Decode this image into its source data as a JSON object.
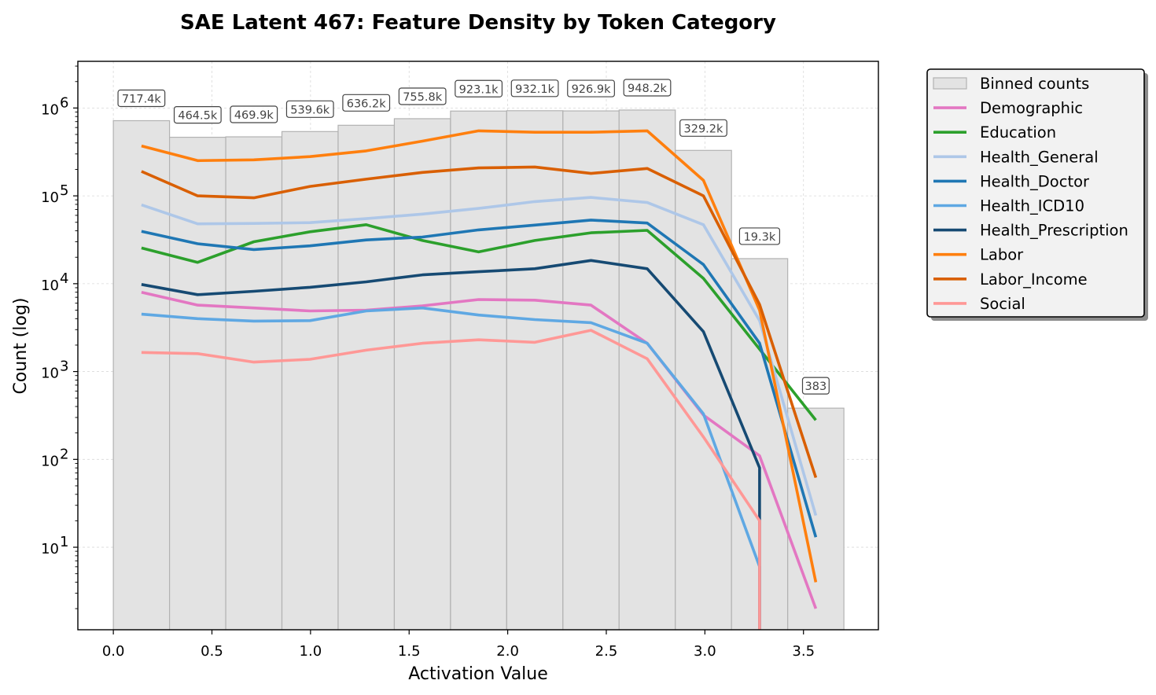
{
  "chart_data": {
    "type": "line",
    "title": "SAE Latent 467: Feature Density by Token Category",
    "xlabel": "Activation Value",
    "ylabel": "Count (log)",
    "xscale": "linear",
    "yscale": "log",
    "xlim": [
      -0.18,
      3.88
    ],
    "ylim": [
      1.15,
      3400000
    ],
    "xticks": [
      0.0,
      0.5,
      1.0,
      1.5,
      2.0,
      2.5,
      3.0,
      3.5
    ],
    "xtick_labels": [
      "0.0",
      "0.5",
      "1.0",
      "1.5",
      "2.0",
      "2.5",
      "3.0",
      "3.5"
    ],
    "yticks": [
      {
        "base": "10",
        "exp": "1",
        "value": 10
      },
      {
        "base": "10",
        "exp": "2",
        "value": 100
      },
      {
        "base": "10",
        "exp": "3",
        "value": 1000
      },
      {
        "base": "10",
        "exp": "4",
        "value": 10000
      },
      {
        "base": "10",
        "exp": "5",
        "value": 100000
      },
      {
        "base": "10",
        "exp": "6",
        "value": 1000000
      }
    ],
    "grid": true,
    "legend_position": "outside-top-right",
    "bins": {
      "name": "Binned counts",
      "color": "#e3e3e3",
      "edges": [
        0.0,
        0.285,
        0.57,
        0.855,
        1.14,
        1.425,
        1.71,
        1.995,
        2.28,
        2.565,
        2.85,
        3.135,
        3.42,
        3.705
      ],
      "counts": [
        717400,
        464500,
        469900,
        539600,
        636200,
        755800,
        923100,
        932100,
        926900,
        948200,
        329200,
        19300,
        383
      ],
      "labels": [
        "717.4k",
        "464.5k",
        "469.9k",
        "539.6k",
        "636.2k",
        "755.8k",
        "923.1k",
        "932.1k",
        "926.9k",
        "948.2k",
        "329.2k",
        "19.3k",
        "383"
      ]
    },
    "x": [
      0.1425,
      0.4275,
      0.7125,
      0.9975,
      1.2825,
      1.5675,
      1.8525,
      2.1375,
      2.4225,
      2.7075,
      2.9925,
      3.2775,
      3.5625
    ],
    "series": [
      {
        "name": "Demographic",
        "color": "#e377c2",
        "values": [
          8000,
          5700,
          5300,
          4900,
          5000,
          5600,
          6600,
          6500,
          5700,
          2100,
          320,
          110,
          2
        ]
      },
      {
        "name": "Education",
        "color": "#2ca02c",
        "values": [
          25500,
          17500,
          30000,
          39000,
          47000,
          31000,
          23000,
          31000,
          38000,
          40500,
          11500,
          1800,
          280
        ]
      },
      {
        "name": "Health_General",
        "color": "#aec7e8",
        "values": [
          79000,
          48000,
          48500,
          49500,
          55000,
          62000,
          72000,
          86000,
          96000,
          84000,
          47000,
          3800,
          23
        ]
      },
      {
        "name": "Health_Doctor",
        "color": "#1f77b4",
        "values": [
          39500,
          28500,
          24500,
          27000,
          31500,
          34000,
          41000,
          46500,
          53000,
          49000,
          16500,
          2100,
          13
        ]
      },
      {
        "name": "Health_ICD10",
        "color": "#5fa8e3",
        "values": [
          4500,
          4000,
          3750,
          3800,
          4900,
          5300,
          4400,
          3900,
          3600,
          2100,
          330,
          6,
          null
        ]
      },
      {
        "name": "Health_Prescription",
        "color": "#164a73",
        "values": [
          9800,
          7500,
          8200,
          9100,
          10500,
          12600,
          13700,
          14800,
          18400,
          14800,
          2850,
          80,
          null
        ]
      },
      {
        "name": "Labor",
        "color": "#ff7f0e",
        "values": [
          370000,
          252000,
          257000,
          280000,
          325000,
          420000,
          550000,
          530000,
          530000,
          550000,
          150000,
          5000,
          4
        ]
      },
      {
        "name": "Labor_Income",
        "color": "#d95f02",
        "values": [
          190000,
          100000,
          95000,
          128000,
          155000,
          185000,
          208000,
          213000,
          180000,
          205000,
          100000,
          5800,
          62
        ]
      },
      {
        "name": "Social",
        "color": "#ff9896",
        "values": [
          1650,
          1600,
          1280,
          1380,
          1750,
          2100,
          2300,
          2150,
          2950,
          1400,
          180,
          20,
          null
        ]
      }
    ]
  }
}
